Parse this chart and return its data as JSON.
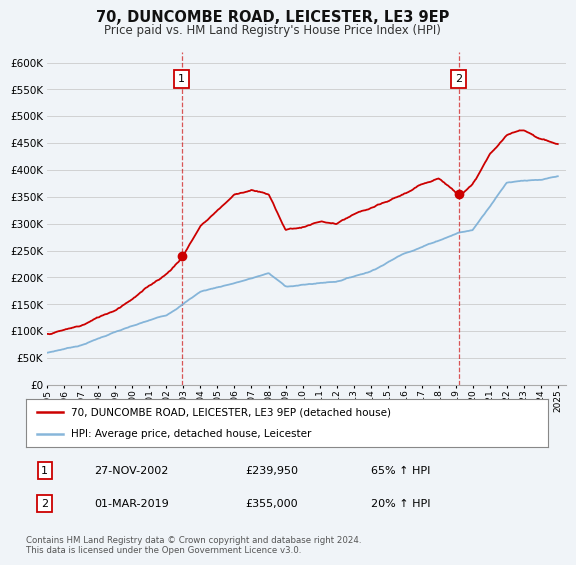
{
  "title": "70, DUNCOMBE ROAD, LEICESTER, LE3 9EP",
  "subtitle": "Price paid vs. HM Land Registry's House Price Index (HPI)",
  "ylim": [
    0,
    620000
  ],
  "yticks": [
    0,
    50000,
    100000,
    150000,
    200000,
    250000,
    300000,
    350000,
    400000,
    450000,
    500000,
    550000,
    600000
  ],
  "ytick_labels": [
    "£0",
    "£50K",
    "£100K",
    "£150K",
    "£200K",
    "£250K",
    "£300K",
    "£350K",
    "£400K",
    "£450K",
    "£500K",
    "£550K",
    "£600K"
  ],
  "sale1": {
    "date_num": 2002.9,
    "price": 239950,
    "label": "1"
  },
  "sale2": {
    "date_num": 2019.17,
    "price": 355000,
    "label": "2"
  },
  "legend_line1": "70, DUNCOMBE ROAD, LEICESTER, LE3 9EP (detached house)",
  "legend_line2": "HPI: Average price, detached house, Leicester",
  "table_row1": [
    "1",
    "27-NOV-2002",
    "£239,950",
    "65% ↑ HPI"
  ],
  "table_row2": [
    "2",
    "01-MAR-2019",
    "£355,000",
    "20% ↑ HPI"
  ],
  "footer": "Contains HM Land Registry data © Crown copyright and database right 2024.\nThis data is licensed under the Open Government Licence v3.0.",
  "red_color": "#cc0000",
  "blue_color": "#7aaed6",
  "background_color": "#f0f4f8",
  "grid_color": "#cccccc",
  "xlim_left": 1995,
  "xlim_right": 2025.5
}
